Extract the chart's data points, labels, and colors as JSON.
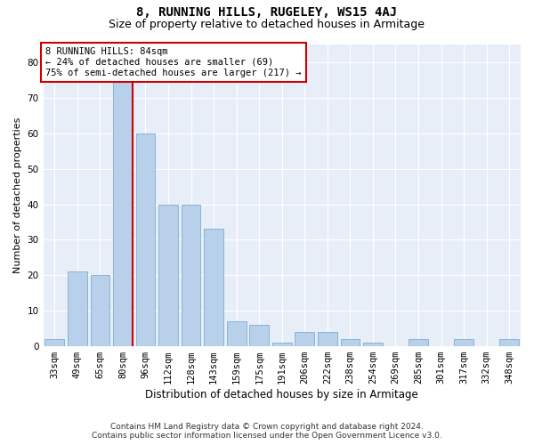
{
  "title": "8, RUNNING HILLS, RUGELEY, WS15 4AJ",
  "subtitle": "Size of property relative to detached houses in Armitage",
  "xlabel": "Distribution of detached houses by size in Armitage",
  "ylabel": "Number of detached properties",
  "categories": [
    "33sqm",
    "49sqm",
    "65sqm",
    "80sqm",
    "96sqm",
    "112sqm",
    "128sqm",
    "143sqm",
    "159sqm",
    "175sqm",
    "191sqm",
    "206sqm",
    "222sqm",
    "238sqm",
    "254sqm",
    "269sqm",
    "285sqm",
    "301sqm",
    "317sqm",
    "332sqm",
    "348sqm"
  ],
  "values": [
    2,
    21,
    20,
    75,
    60,
    40,
    40,
    33,
    7,
    6,
    1,
    4,
    4,
    2,
    1,
    0,
    2,
    0,
    2,
    0,
    2
  ],
  "bar_color": "#b8d0ea",
  "bar_edge_color": "#7aafd4",
  "red_line_index": 3,
  "annotation_line1": "8 RUNNING HILLS: 84sqm",
  "annotation_line2": "← 24% of detached houses are smaller (69)",
  "annotation_line3": "75% of semi-detached houses are larger (217) →",
  "ylim": [
    0,
    85
  ],
  "yticks": [
    0,
    10,
    20,
    30,
    40,
    50,
    60,
    70,
    80
  ],
  "bg_color": "#ffffff",
  "plot_bg_color": "#e8eef8",
  "grid_color": "#ffffff",
  "footer1": "Contains HM Land Registry data © Crown copyright and database right 2024.",
  "footer2": "Contains public sector information licensed under the Open Government Licence v3.0.",
  "title_fontsize": 10,
  "subtitle_fontsize": 9,
  "ylabel_fontsize": 8,
  "xlabel_fontsize": 8.5,
  "tick_fontsize": 7.5,
  "annotation_fontsize": 7.5,
  "footer_fontsize": 6.5,
  "annotation_box_color": "white",
  "annotation_box_edge": "#cc0000",
  "red_line_color": "#cc0000"
}
